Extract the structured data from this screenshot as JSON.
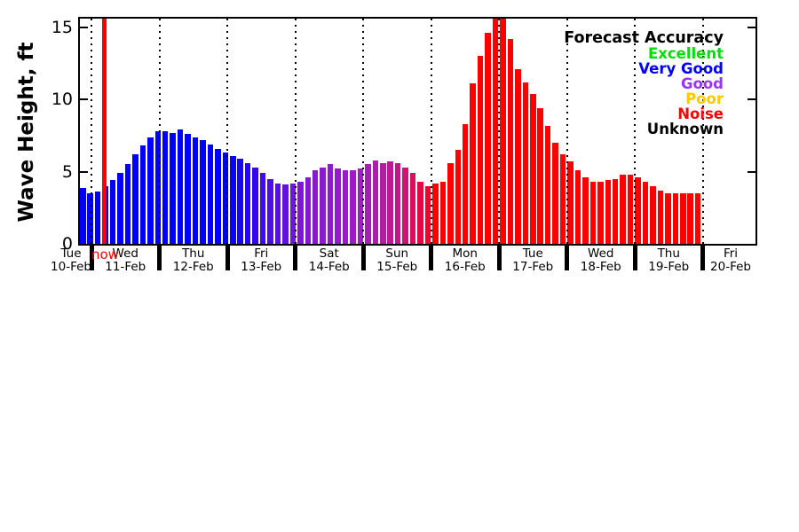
{
  "chart_data": {
    "type": "bar",
    "title": "",
    "ylabel": "Wave Height, ft",
    "xlabel": "",
    "ylim": [
      0,
      15.6
    ],
    "yticks": [
      0,
      5,
      10,
      15
    ],
    "grid": "dotted vertical line at each midnight day boundary",
    "legend_position": "top-right",
    "bars_per_day": 9,
    "x_day_labels": [
      {
        "day": "Tue",
        "date": "10-Feb"
      },
      {
        "day": "Wed",
        "date": "11-Feb"
      },
      {
        "day": "Thu",
        "date": "12-Feb"
      },
      {
        "day": "Fri",
        "date": "13-Feb"
      },
      {
        "day": "Sat",
        "date": "14-Feb"
      },
      {
        "day": "Sun",
        "date": "15-Feb"
      },
      {
        "day": "Mon",
        "date": "16-Feb"
      },
      {
        "day": "Tue",
        "date": "17-Feb"
      },
      {
        "day": "Wed",
        "date": "18-Feb"
      },
      {
        "day": "Thu",
        "date": "19-Feb"
      },
      {
        "day": "Fri",
        "date": "20-Feb"
      }
    ],
    "values": [
      3.9,
      3.5,
      3.6,
      4.0,
      4.4,
      4.9,
      5.5,
      6.2,
      6.8,
      7.4,
      7.8,
      7.8,
      7.7,
      7.9,
      7.6,
      7.4,
      7.2,
      6.9,
      6.6,
      6.3,
      6.1,
      5.9,
      5.6,
      5.3,
      4.9,
      4.5,
      4.2,
      4.1,
      4.2,
      4.3,
      4.6,
      5.1,
      5.3,
      5.5,
      5.2,
      5.1,
      5.1,
      5.2,
      5.5,
      5.8,
      5.6,
      5.7,
      5.6,
      5.3,
      4.9,
      4.3,
      4.0,
      4.2,
      4.3,
      5.6,
      6.5,
      8.3,
      11.1,
      13.0,
      14.6,
      15.9,
      16.3,
      14.2,
      12.1,
      11.2,
      10.4,
      9.4,
      8.2,
      7.0,
      6.2,
      5.7,
      5.1,
      4.6,
      4.3,
      4.3,
      4.4,
      4.5,
      4.8,
      4.8,
      4.6,
      4.3,
      4.0,
      3.7,
      3.5,
      3.5,
      3.5,
      3.5,
      3.5
    ],
    "bar_color_stops": [
      {
        "i": 0,
        "c": "#0000ff"
      },
      {
        "i": 19,
        "c": "#0000ff"
      },
      {
        "i": 29,
        "c": "#7c17d6"
      },
      {
        "i": 37,
        "c": "#a21dc6"
      },
      {
        "i": 40,
        "c": "#b81aa8"
      },
      {
        "i": 43,
        "c": "#cc1378"
      },
      {
        "i": 46,
        "c": "#ee0628"
      },
      {
        "i": 47,
        "c": "#ff0000"
      },
      {
        "i": 82,
        "c": "#ff0000"
      }
    ],
    "now_label": "now",
    "now_bar_index": 3,
    "now_line_color": "#ff0000",
    "legend": {
      "title": "Forecast Accuracy",
      "items": [
        {
          "label": "Excellent",
          "color": "#00dd00"
        },
        {
          "label": "Very Good",
          "color": "#0000ff"
        },
        {
          "label": "Good",
          "color": "#9933ff"
        },
        {
          "label": "Poor",
          "color": "#ffc800"
        },
        {
          "label": "Noise",
          "color": "#ff0000"
        },
        {
          "label": "Unknown",
          "color": "#000000"
        }
      ]
    }
  }
}
